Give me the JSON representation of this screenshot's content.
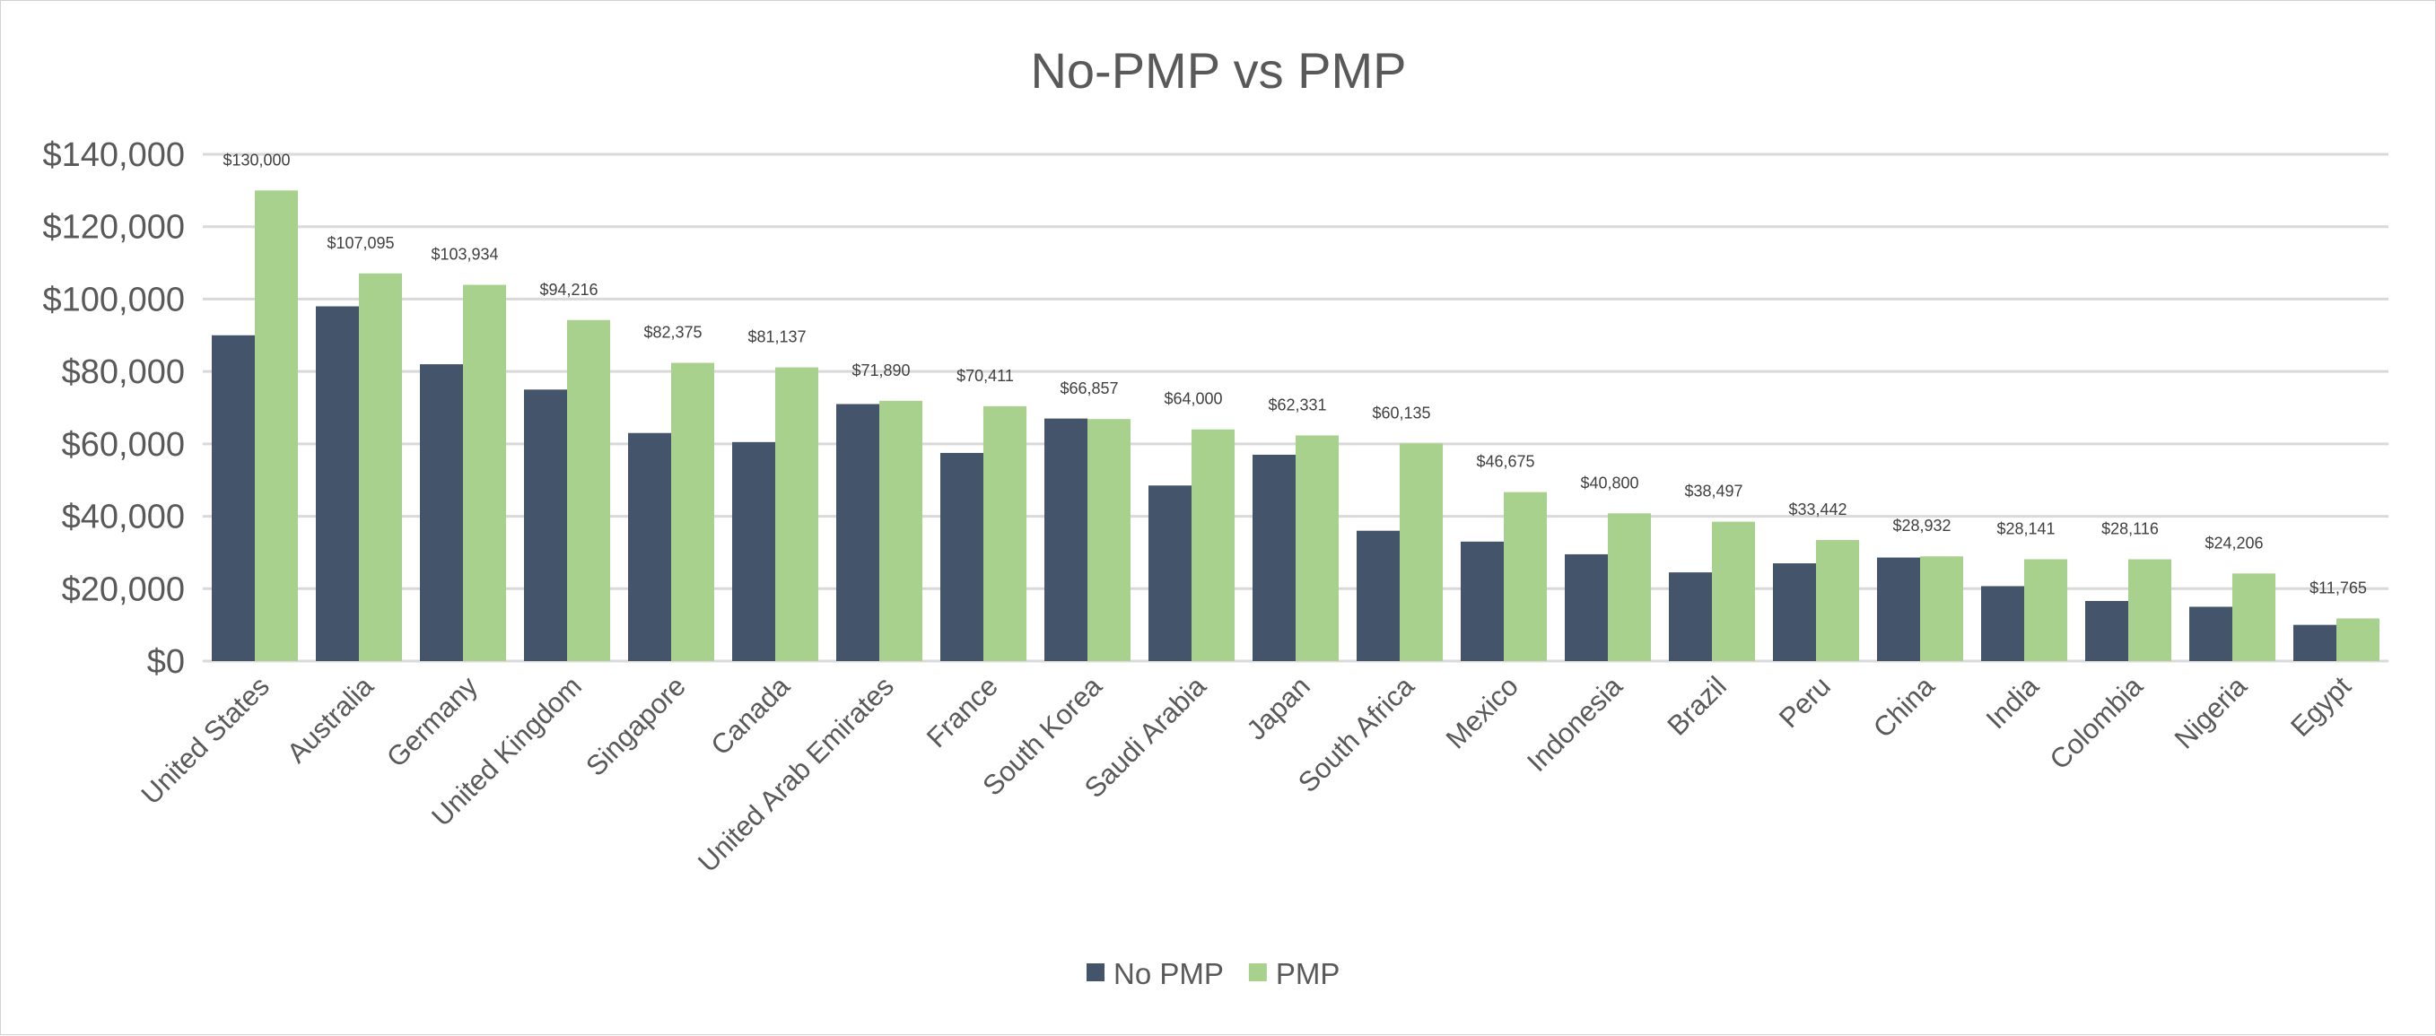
{
  "chart_data": {
    "type": "bar",
    "title": "No-PMP vs PMP",
    "xlabel": "",
    "ylabel": "",
    "ylim": [
      0,
      140000
    ],
    "yticks": [
      "$0",
      "$20,000",
      "$40,000",
      "$60,000",
      "$80,000",
      "$100,000",
      "$120,000",
      "$140,000"
    ],
    "grid": true,
    "legend_position": "bottom",
    "categories": [
      "United States",
      "Australia",
      "Germany",
      "United Kingdom",
      "Singapore",
      "Canada",
      "United Arab Emirates",
      "France",
      "South Korea",
      "Saudi Arabia",
      "Japan",
      "South Africa",
      "Mexico",
      "Indonesia",
      "Brazil",
      "Peru",
      "China",
      "India",
      "Colombia",
      "Nigeria",
      "Egypt"
    ],
    "series": [
      {
        "name": "No PMP",
        "color": "#44546a",
        "values": [
          90000,
          98000,
          82000,
          75000,
          63000,
          60500,
          71000,
          57500,
          67000,
          48500,
          57000,
          36000,
          33000,
          29500,
          24500,
          27000,
          28600,
          20700,
          16600,
          15000,
          10000
        ]
      },
      {
        "name": "PMP",
        "color": "#a9d18e",
        "values": [
          130000,
          107095,
          103934,
          94216,
          82375,
          81137,
          71890,
          70411,
          66857,
          64000,
          62331,
          60135,
          46675,
          40800,
          38497,
          33442,
          28932,
          28141,
          28116,
          24206,
          11765
        ],
        "labels": [
          "$130,000",
          "$107,095",
          "$103,934",
          "$94,216",
          "$82,375",
          "$81,137",
          "$71,890",
          "$70,411",
          "$66,857",
          "$64,000",
          "$62,331",
          "$60,135",
          "$46,675",
          "$40,800",
          "$38,497",
          "$33,442",
          "$28,932",
          "$28,141",
          "$28,116",
          "$24,206",
          "$11,765"
        ]
      }
    ]
  }
}
